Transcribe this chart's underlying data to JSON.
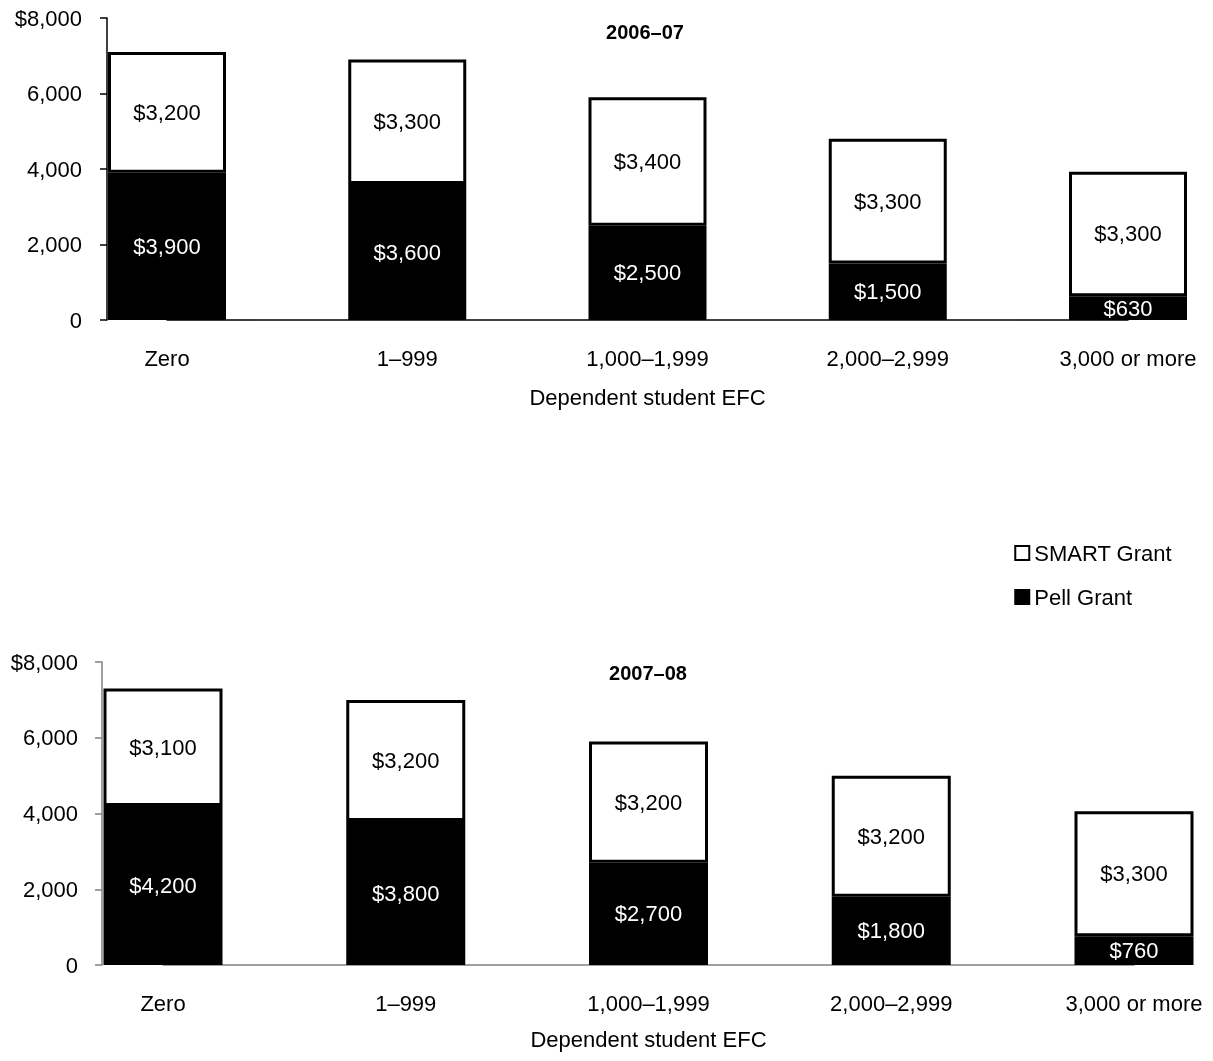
{
  "chart_data": [
    {
      "type": "bar",
      "title": "2006–07",
      "xlabel": "Dependent student EFC",
      "categories": [
        "Zero",
        "1–999",
        "1,000–1,999",
        "2,000–2,999",
        "3,000 or more"
      ],
      "stacked": true,
      "series": [
        {
          "color": "#000000",
          "values": [
            3900,
            3600,
            2500,
            1500,
            630
          ],
          "value_labels": [
            "$3,900",
            "$3,600",
            "$2,500",
            "$1,500",
            "$630"
          ]
        },
        {
          "color": "#ffffff",
          "values": [
            3200,
            3300,
            3400,
            3300,
            3300
          ],
          "value_labels": [
            "$3,200",
            "$3,300",
            "$3,400",
            "$3,300",
            "$3,300"
          ]
        }
      ],
      "ylim": [
        0,
        8000
      ],
      "yticks": [
        0,
        {
          "value": 2000,
          "label": "2,000"
        },
        {
          "value": 4000,
          "label": "4,000"
        },
        {
          "value": 6000,
          "label": "6,000"
        },
        {
          "value": 8000,
          "label": "$8,000"
        }
      ]
    },
    {
      "type": "bar",
      "title": "2007–08",
      "xlabel": "Dependent student EFC",
      "categories": [
        "Zero",
        "1–999",
        "1,000–1,999",
        "2,000–2,999",
        "3,000 or more"
      ],
      "stacked": true,
      "series": [
        {
          "name": "Pell Grant",
          "color": "#000000",
          "values": [
            4200,
            3800,
            2700,
            1800,
            760
          ],
          "value_labels": [
            "$4,200",
            "$3,800",
            "$2,700",
            "$1,800",
            "$760"
          ]
        },
        {
          "name": "SMART Grant",
          "color": "#ffffff",
          "values": [
            3100,
            3200,
            3200,
            3200,
            3300
          ],
          "value_labels": [
            "$3,100",
            "$3,200",
            "$3,200",
            "$3,200",
            "$3,300"
          ]
        }
      ],
      "ylim": [
        0,
        8000
      ],
      "yticks": [
        0,
        {
          "value": 2000,
          "label": "2,000"
        },
        {
          "value": 4000,
          "label": "4,000"
        },
        {
          "value": 6000,
          "label": "6,000"
        },
        {
          "value": 8000,
          "label": "$8,000"
        }
      ],
      "legend": "top right"
    }
  ]
}
